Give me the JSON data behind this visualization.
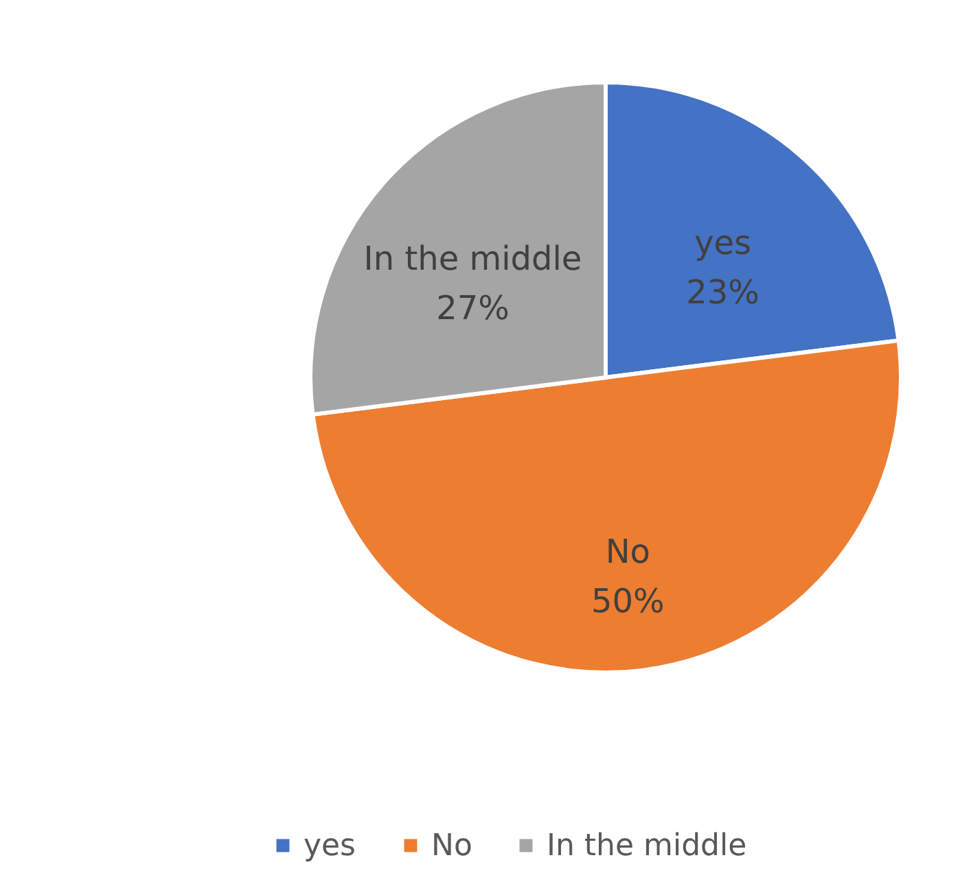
{
  "chart_data": {
    "type": "pie",
    "categories": [
      "yes",
      "No",
      "In the middle"
    ],
    "values": [
      23,
      50,
      27
    ],
    "colors": [
      "#4472c4",
      "#ed7d31",
      "#a5a5a5"
    ],
    "value_labels": [
      "23%",
      "50%",
      "27%"
    ],
    "data_labels": true,
    "legend": "bottom"
  }
}
